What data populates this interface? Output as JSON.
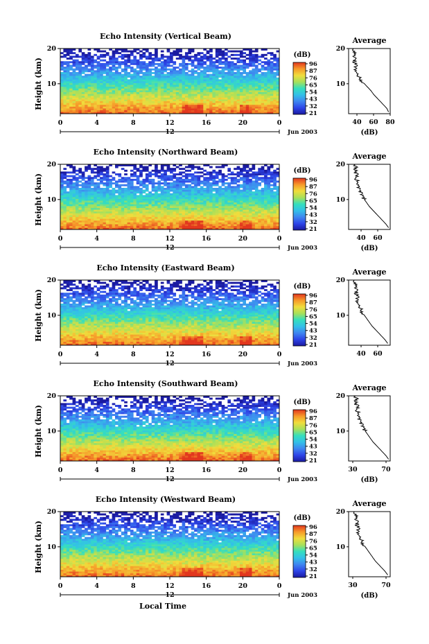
{
  "chart_data": {
    "type": "heatmap",
    "shared_xlabel": "Local Time",
    "x_ticks": [
      "0",
      "4",
      "8",
      "12",
      "16",
      "20",
      "0"
    ],
    "date_tick": "12",
    "date_label": "Jun 2003",
    "colorbar": {
      "unit": "(dB)",
      "ticks": [
        "96",
        "87",
        "76",
        "65",
        "54",
        "43",
        "32",
        "21"
      ],
      "range": [
        21,
        96
      ],
      "colors": [
        "#1a1aa0",
        "#2e45e8",
        "#3f86f0",
        "#33c0e8",
        "#35dfbd",
        "#a8e05a",
        "#f0dd3c",
        "#f79a2a",
        "#e2371e"
      ]
    },
    "panels": [
      {
        "title": "Echo Intensity (Vertical Beam)",
        "ylabel": "Height (km)",
        "y_ticks": [
          "20",
          "10"
        ],
        "ylim": [
          1.5,
          20
        ],
        "profile": {
          "title": "Average",
          "xlabel": "(dB)",
          "x_ticks": [
            "40",
            "60",
            "80"
          ],
          "xlim": [
            30,
            80
          ],
          "heights": [
            2,
            3,
            4,
            5,
            6,
            7,
            8,
            9,
            10,
            11,
            12,
            13,
            14,
            15,
            16,
            17,
            18,
            19,
            20
          ],
          "values": [
            78,
            76,
            72,
            68,
            64,
            60,
            57,
            53,
            49,
            45,
            42,
            40,
            38,
            39,
            37,
            38,
            36,
            38,
            35
          ]
        }
      },
      {
        "title": "Echo Intensity (Northward Beam)",
        "ylabel": "Height (km)",
        "y_ticks": [
          "20",
          "10"
        ],
        "ylim": [
          1.5,
          20
        ],
        "profile": {
          "title": "Average",
          "xlabel": "(dB)",
          "x_ticks": [
            "40",
            "60"
          ],
          "xlim": [
            25,
            75
          ],
          "heights": [
            2,
            3,
            4,
            5,
            6,
            7,
            8,
            9,
            10,
            11,
            12,
            13,
            14,
            15,
            16,
            17,
            18,
            19,
            20
          ],
          "values": [
            73,
            70,
            66,
            62,
            58,
            54,
            50,
            47,
            44,
            41,
            39,
            37,
            35,
            36,
            34,
            35,
            33,
            34,
            31
          ]
        }
      },
      {
        "title": "Echo Intensity (Eastward Beam)",
        "ylabel": "Height (km)",
        "y_ticks": [
          "20",
          "10"
        ],
        "ylim": [
          1.5,
          20
        ],
        "profile": {
          "title": "Average",
          "xlabel": "",
          "x_ticks": [
            "40",
            "60"
          ],
          "xlim": [
            25,
            75
          ],
          "heights": [
            2,
            3,
            4,
            5,
            6,
            7,
            8,
            9,
            10,
            11,
            12,
            13,
            14,
            15,
            16,
            17,
            18,
            19,
            20
          ],
          "values": [
            72,
            69,
            65,
            61,
            57,
            53,
            50,
            47,
            44,
            41,
            39,
            37,
            35,
            36,
            34,
            35,
            33,
            34,
            31
          ]
        }
      },
      {
        "title": "Echo Intensity (Southward Beam)",
        "ylabel": "Height (km)",
        "y_ticks": [
          "20",
          "10"
        ],
        "ylim": [
          1.5,
          20
        ],
        "profile": {
          "title": "Average",
          "xlabel": "(dB)",
          "x_ticks": [
            "30",
            "70"
          ],
          "xlim": [
            25,
            75
          ],
          "heights": [
            2,
            3,
            4,
            5,
            6,
            7,
            8,
            9,
            10,
            11,
            12,
            13,
            14,
            15,
            16,
            17,
            18,
            19,
            20
          ],
          "values": [
            73,
            70,
            66,
            62,
            58,
            54,
            51,
            48,
            45,
            42,
            40,
            38,
            36,
            37,
            35,
            36,
            33,
            35,
            31
          ]
        }
      },
      {
        "title": "Echo Intensity (Westward Beam)",
        "ylabel": "Height (km)",
        "y_ticks": [
          "20",
          "10"
        ],
        "ylim": [
          1.5,
          20
        ],
        "profile": {
          "title": "Average",
          "xlabel": "(dB)",
          "x_ticks": [
            "30",
            "70"
          ],
          "xlim": [
            25,
            75
          ],
          "heights": [
            2,
            3,
            4,
            5,
            6,
            7,
            8,
            9,
            10,
            11,
            12,
            13,
            14,
            15,
            16,
            17,
            18,
            19,
            20
          ],
          "values": [
            72,
            69,
            65,
            61,
            57,
            54,
            51,
            48,
            45,
            42,
            40,
            38,
            36,
            37,
            35,
            36,
            33,
            35,
            31
          ]
        }
      }
    ]
  }
}
